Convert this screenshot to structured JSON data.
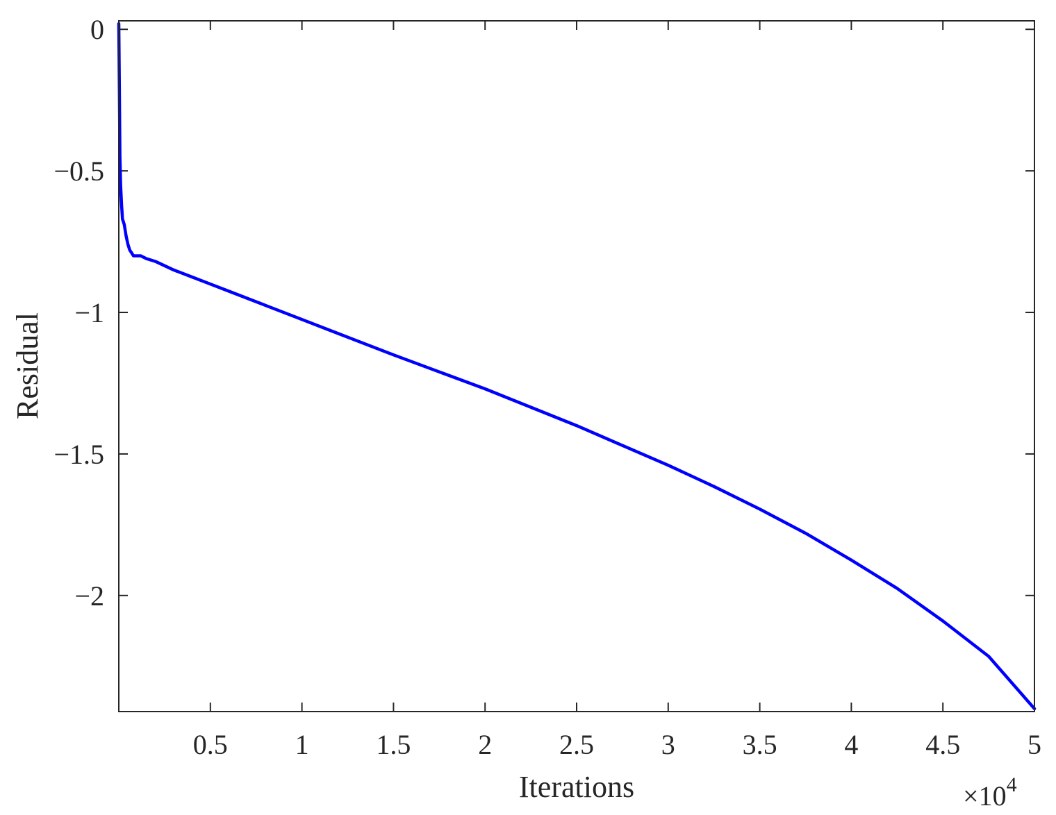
{
  "chart_data": {
    "type": "line",
    "title": "",
    "xlabel": "Iterations",
    "ylabel": "Residual",
    "x_multiplier_base": "10",
    "x_multiplier_exponent": "4",
    "xlim": [
      0,
      50000
    ],
    "ylim": [
      -2.41,
      0.03
    ],
    "x_ticks": [
      5000,
      10000,
      15000,
      20000,
      25000,
      30000,
      35000,
      40000,
      45000,
      50000
    ],
    "x_tick_labels": [
      "0.5",
      "1",
      "1.5",
      "2",
      "2.5",
      "3",
      "3.5",
      "4",
      "4.5",
      "5"
    ],
    "y_ticks": [
      0,
      -0.5,
      -1,
      -1.5,
      -2
    ],
    "y_tick_labels": [
      "0",
      "−0.5",
      "−1",
      "−1.5",
      "−2"
    ],
    "grid": false,
    "box": true,
    "series": [
      {
        "color": "#0000ff",
        "x": [
          0,
          30,
          60,
          100,
          150,
          200,
          300,
          400,
          500,
          600,
          700,
          800,
          900,
          1000,
          1100,
          1200,
          1500,
          2000,
          3000,
          4000,
          5000,
          6000,
          8000,
          10000,
          12000,
          15000,
          17500,
          20000,
          22500,
          25000,
          27500,
          30000,
          32500,
          35000,
          37500,
          40000,
          42500,
          45000,
          47500,
          50000
        ],
        "y": [
          0.02,
          -0.2,
          -0.45,
          -0.55,
          -0.62,
          -0.67,
          -0.69,
          -0.73,
          -0.76,
          -0.78,
          -0.79,
          -0.8,
          -0.8,
          -0.8,
          -0.8,
          -0.8,
          -0.81,
          -0.82,
          -0.85,
          -0.875,
          -0.9,
          -0.925,
          -0.975,
          -1.025,
          -1.075,
          -1.15,
          -1.21,
          -1.27,
          -1.335,
          -1.4,
          -1.47,
          -1.54,
          -1.615,
          -1.695,
          -1.78,
          -1.875,
          -1.975,
          -2.09,
          -2.215,
          -2.4
        ]
      }
    ]
  }
}
